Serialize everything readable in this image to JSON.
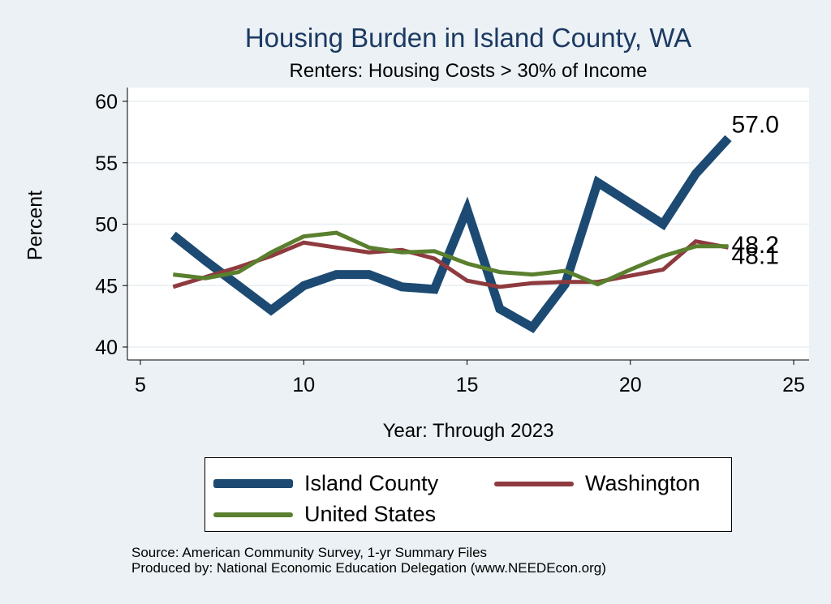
{
  "chart_data": {
    "type": "line",
    "title": "Housing Burden in Island County, WA",
    "subtitle": "Renters: Housing Costs > 30% of Income",
    "xlabel": "Year: Through 2023",
    "ylabel": "Percent",
    "xlim": [
      5,
      25
    ],
    "ylim": [
      40,
      60
    ],
    "xticks": [
      5,
      10,
      15,
      20,
      25
    ],
    "yticks": [
      40,
      45,
      50,
      55,
      60
    ],
    "grid": true,
    "series": [
      {
        "name": "Island County",
        "color": "#1c4a72",
        "x": [
          6,
          7,
          8,
          9,
          10,
          11,
          12,
          13,
          14,
          15,
          16,
          17,
          18,
          19,
          20,
          21,
          22,
          23
        ],
        "values": [
          49.1,
          47.0,
          45.0,
          43.0,
          45.0,
          45.9,
          45.9,
          44.9,
          44.7,
          51.2,
          43.1,
          41.6,
          45.1,
          53.4,
          51.7,
          50.0,
          54.1,
          57.0
        ],
        "end_label": "57.0"
      },
      {
        "name": "Washington",
        "color": "#8e3a3e",
        "x": [
          6,
          7,
          8,
          9,
          10,
          11,
          12,
          13,
          14,
          15,
          16,
          17,
          18,
          19,
          20,
          21,
          22,
          23
        ],
        "values": [
          44.9,
          45.7,
          46.5,
          47.4,
          48.5,
          48.1,
          47.7,
          47.9,
          47.2,
          45.4,
          44.9,
          45.2,
          45.3,
          45.3,
          45.8,
          46.3,
          48.6,
          48.1
        ],
        "end_label": "48.1"
      },
      {
        "name": "United States",
        "color": "#5a7f2e",
        "x": [
          6,
          7,
          8,
          9,
          10,
          11,
          12,
          13,
          14,
          15,
          16,
          17,
          18,
          19,
          20,
          21,
          22,
          23
        ],
        "values": [
          45.9,
          45.6,
          46.1,
          47.7,
          49.0,
          49.3,
          48.1,
          47.7,
          47.8,
          46.8,
          46.1,
          45.9,
          46.2,
          45.1,
          46.3,
          47.4,
          48.2,
          48.2
        ],
        "end_label": "48.2"
      }
    ]
  },
  "legend": {
    "items": [
      {
        "label": "Island County",
        "color": "#1c4a72"
      },
      {
        "label": "Washington",
        "color": "#8e3a3e"
      },
      {
        "label": "United States",
        "color": "#5a7f2e"
      }
    ]
  },
  "notes": {
    "source": "Source: American Community Survey, 1-yr Summary Files",
    "produced_by": "Produced by: National Economic Education Delegation (www.NEEDEcon.org)"
  }
}
